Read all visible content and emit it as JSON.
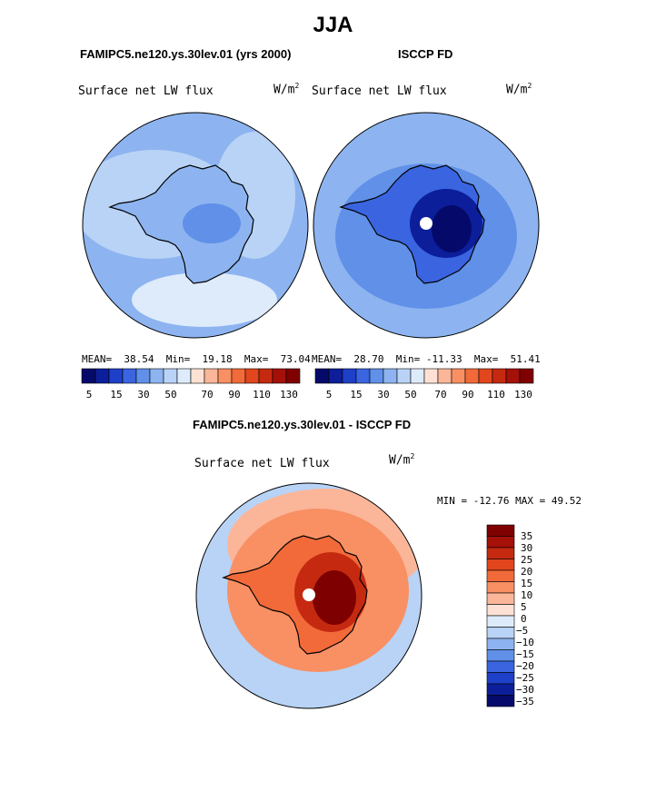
{
  "title": "JJA",
  "colors": {
    "c130": "#7f0000",
    "c120": "#a51008",
    "c110": "#c52a10",
    "c100": "#e2461c",
    "c90": "#f26a3a",
    "c80": "#f89064",
    "c70": "#fbb69a",
    "c60": "#fde1d4",
    "c50": "#deebfb",
    "c40": "#b8d3f6",
    "c30": "#8db4f0",
    "c20": "#6090e8",
    "c10": "#3a64e0",
    "c5": "#1e40c8",
    "c0": "#0c1e9a",
    "cm": "#050a6a",
    "coast": "#000000",
    "pole": "#ffffff"
  },
  "panels": [
    {
      "heading": "FAMIPC5.ne120.ys.30lev.01 (yrs 2000)",
      "variable": "Surface net LW flux",
      "units": "W/m",
      "units_exp": "2",
      "mean_label": "MEAN=",
      "mean": "38.54",
      "min_label": "Min=",
      "min": "19.18",
      "max_label": "Max=",
      "max": "73.04"
    },
    {
      "heading": "ISCCP FD",
      "variable": "Surface net LW flux",
      "units": "W/m",
      "units_exp": "2",
      "mean_label": "MEAN=",
      "mean": "28.70",
      "min_label": "Min=",
      "min": "-11.33",
      "max_label": "Max=",
      "max": "51.41"
    }
  ],
  "colorbar_ticks": [
    "5",
    "15",
    "30",
    "50",
    "70",
    "90",
    "110",
    "130"
  ],
  "diff": {
    "heading": "FAMIPC5.ne120.ys.30lev.01 - ISCCP FD",
    "variable": "Surface net LW flux",
    "units": "W/m",
    "units_exp": "2",
    "min_max": "MIN = -12.76 MAX =   49.52",
    "colorbar_ticks": [
      "35",
      "30",
      "25",
      "20",
      "15",
      "10",
      "5",
      "0",
      "−5",
      "−10",
      "−15",
      "−20",
      "−25",
      "−30",
      "−35"
    ]
  }
}
